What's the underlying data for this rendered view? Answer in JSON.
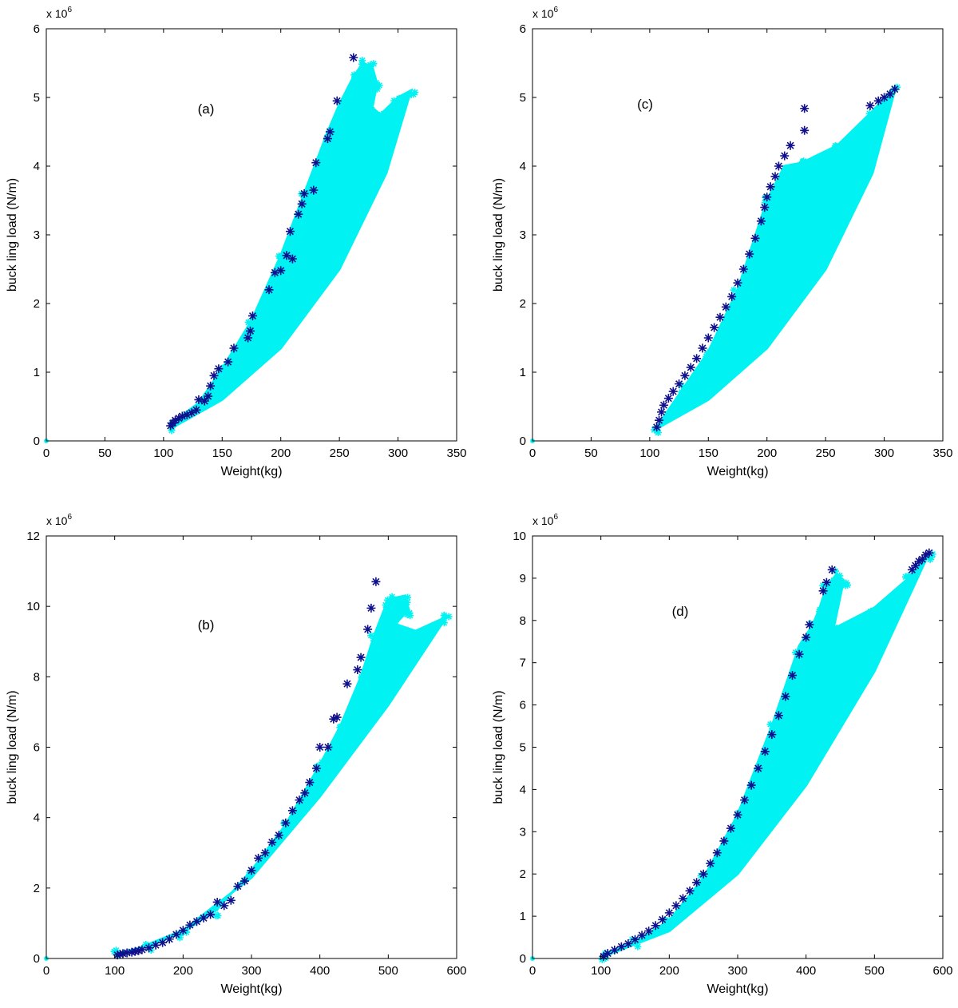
{
  "colors": {
    "feasible": "#00f2f2",
    "pareto": "#10108c",
    "axis": "#000000"
  },
  "chart_data": [
    {
      "id": "a",
      "type": "scatter",
      "panel_label": "(a)",
      "xlabel": "Weight(kg)",
      "ylabel": "buck ling load (N/m)",
      "y_exponent": "x 10",
      "y_exponent_power": "6",
      "xlim": [
        0,
        350
      ],
      "ylim": [
        0,
        6
      ],
      "xticks": [
        0,
        50,
        100,
        150,
        200,
        250,
        300,
        350
      ],
      "yticks": [
        0,
        1,
        2,
        3,
        4,
        5,
        6
      ],
      "region": {
        "lower_x": [
          106,
          150,
          200,
          250,
          290,
          311
        ],
        "lower_y": [
          0.18,
          0.6,
          1.35,
          2.5,
          3.9,
          5.1
        ],
        "upper_x": [
          106,
          130,
          150,
          175,
          200,
          220,
          240,
          250,
          262,
          270,
          278,
          282,
          278,
          285,
          300,
          311
        ],
        "upper_y": [
          0.25,
          0.55,
          1.05,
          1.75,
          2.7,
          3.6,
          4.5,
          4.9,
          5.3,
          5.5,
          5.45,
          5.2,
          4.85,
          4.75,
          5.0,
          5.1
        ]
      },
      "pareto_x": [
        106,
        108,
        110,
        113,
        116,
        120,
        124,
        128,
        130,
        135,
        138,
        140,
        143,
        147,
        155,
        160,
        172,
        174,
        176,
        190,
        195,
        200,
        205,
        208,
        210,
        215,
        218,
        220,
        228,
        230,
        240,
        242,
        248,
        262
      ],
      "pareto_y": [
        0.22,
        0.26,
        0.3,
        0.33,
        0.36,
        0.38,
        0.41,
        0.45,
        0.6,
        0.58,
        0.65,
        0.8,
        0.95,
        1.05,
        1.15,
        1.35,
        1.5,
        1.6,
        1.82,
        2.2,
        2.45,
        2.48,
        2.7,
        3.05,
        2.65,
        3.3,
        3.45,
        3.6,
        3.65,
        4.05,
        4.4,
        4.5,
        4.95,
        5.58
      ]
    },
    {
      "id": "c",
      "type": "scatter",
      "panel_label": "(c)",
      "xlabel": "Weight(kg)",
      "ylabel": "buck ling load (N/m)",
      "y_exponent": "x 10",
      "y_exponent_power": "6",
      "xlim": [
        0,
        350
      ],
      "ylim": [
        0,
        6
      ],
      "xticks": [
        0,
        50,
        100,
        150,
        200,
        250,
        300,
        350
      ],
      "yticks": [
        0,
        1,
        2,
        3,
        4,
        5,
        6
      ],
      "region": {
        "lower_x": [
          106,
          150,
          200,
          250,
          290,
          309
        ],
        "lower_y": [
          0.18,
          0.6,
          1.35,
          2.5,
          3.9,
          5.1
        ],
        "upper_x": [
          106,
          130,
          150,
          175,
          200,
          215,
          230,
          260,
          290,
          309
        ],
        "upper_y": [
          0.2,
          0.8,
          1.3,
          2.2,
          3.5,
          4.0,
          4.05,
          4.3,
          4.8,
          5.15
        ]
      },
      "pareto_x": [
        106,
        108,
        110,
        112,
        116,
        120,
        125,
        130,
        135,
        140,
        145,
        150,
        155,
        160,
        165,
        170,
        175,
        180,
        185,
        190,
        195,
        198,
        200,
        203,
        207,
        210,
        215,
        220,
        232,
        232,
        288,
        295,
        300,
        305,
        309
      ],
      "pareto_y": [
        0.2,
        0.3,
        0.42,
        0.52,
        0.62,
        0.72,
        0.83,
        0.95,
        1.07,
        1.2,
        1.35,
        1.5,
        1.65,
        1.8,
        1.95,
        2.1,
        2.3,
        2.5,
        2.72,
        2.95,
        3.2,
        3.4,
        3.55,
        3.7,
        3.85,
        4.0,
        4.15,
        4.3,
        4.52,
        4.84,
        4.88,
        4.95,
        5.0,
        5.05,
        5.12
      ]
    },
    {
      "id": "b",
      "type": "scatter",
      "panel_label": "(b)",
      "xlabel": "Weight(kg)",
      "ylabel": "buck ling load (N/m)",
      "y_exponent": "x 10",
      "y_exponent_power": "6",
      "xlim": [
        0,
        600
      ],
      "ylim": [
        0,
        12
      ],
      "xticks": [
        0,
        100,
        200,
        300,
        400,
        500,
        600
      ],
      "yticks": [
        0,
        2,
        4,
        6,
        8,
        10,
        12
      ],
      "region": {
        "lower_x": [
          104,
          200,
          300,
          400,
          500,
          585
        ],
        "lower_y": [
          0.05,
          0.8,
          2.3,
          4.6,
          7.2,
          9.7
        ],
        "upper_x": [
          104,
          150,
          200,
          250,
          300,
          350,
          400,
          430,
          460,
          480,
          500,
          525,
          530,
          510,
          540,
          585
        ],
        "upper_y": [
          0.15,
          0.35,
          0.75,
          1.4,
          2.5,
          3.8,
          5.5,
          6.6,
          8.0,
          9.2,
          10.2,
          10.3,
          9.9,
          9.5,
          9.3,
          9.7
        ]
      },
      "pareto_x": [
        104,
        108,
        112,
        118,
        125,
        130,
        135,
        140,
        150,
        160,
        170,
        180,
        190,
        200,
        210,
        220,
        230,
        240,
        250,
        260,
        270,
        280,
        290,
        300,
        310,
        320,
        330,
        340,
        350,
        360,
        370,
        378,
        385,
        395,
        400,
        412,
        420,
        425,
        440,
        455,
        460,
        470,
        475,
        482
      ],
      "pareto_y": [
        0.1,
        0.12,
        0.14,
        0.16,
        0.18,
        0.2,
        0.22,
        0.25,
        0.3,
        0.38,
        0.45,
        0.55,
        0.68,
        0.8,
        0.95,
        1.05,
        1.15,
        1.25,
        1.6,
        1.5,
        1.65,
        2.05,
        2.2,
        2.5,
        2.85,
        3.0,
        3.3,
        3.5,
        3.85,
        4.2,
        4.5,
        4.7,
        5.0,
        5.4,
        6.0,
        6.0,
        6.8,
        6.85,
        7.8,
        8.2,
        8.55,
        9.35,
        9.95,
        10.7
      ]
    },
    {
      "id": "d",
      "type": "scatter",
      "panel_label": "(d)",
      "xlabel": "Weight(kg)",
      "ylabel": "buck ling load (N/m)",
      "y_exponent": "x 10",
      "y_exponent_power": "6",
      "xlim": [
        0,
        600
      ],
      "ylim": [
        0,
        10
      ],
      "xticks": [
        0,
        100,
        200,
        300,
        400,
        500,
        600
      ],
      "yticks": [
        0,
        1,
        2,
        3,
        4,
        5,
        6,
        7,
        8,
        9,
        10
      ],
      "region": {
        "lower_x": [
          104,
          200,
          300,
          400,
          500,
          580
        ],
        "lower_y": [
          0.05,
          0.65,
          2.0,
          4.1,
          6.8,
          9.6
        ],
        "upper_x": [
          104,
          150,
          200,
          250,
          300,
          350,
          390,
          410,
          420,
          430,
          445,
          455,
          440,
          500,
          550,
          580
        ],
        "upper_y": [
          0.1,
          0.4,
          0.9,
          1.9,
          3.4,
          5.5,
          7.4,
          7.9,
          8.3,
          8.8,
          9.1,
          8.95,
          7.8,
          8.3,
          9.0,
          9.6
        ]
      },
      "pareto_x": [
        104,
        110,
        120,
        130,
        140,
        150,
        160,
        170,
        180,
        190,
        200,
        210,
        220,
        230,
        240,
        250,
        260,
        270,
        280,
        290,
        300,
        310,
        320,
        330,
        340,
        350,
        360,
        370,
        380,
        390,
        400,
        405,
        425,
        430,
        438,
        555,
        560,
        565,
        570,
        575,
        580
      ],
      "pareto_y": [
        0.05,
        0.12,
        0.2,
        0.28,
        0.35,
        0.45,
        0.55,
        0.65,
        0.78,
        0.92,
        1.08,
        1.25,
        1.42,
        1.6,
        1.8,
        2.0,
        2.25,
        2.5,
        2.78,
        3.08,
        3.4,
        3.75,
        4.1,
        4.5,
        4.9,
        5.3,
        5.75,
        6.2,
        6.7,
        7.2,
        7.6,
        7.9,
        8.7,
        8.9,
        9.2,
        9.2,
        9.3,
        9.4,
        9.45,
        9.55,
        9.6
      ]
    }
  ]
}
